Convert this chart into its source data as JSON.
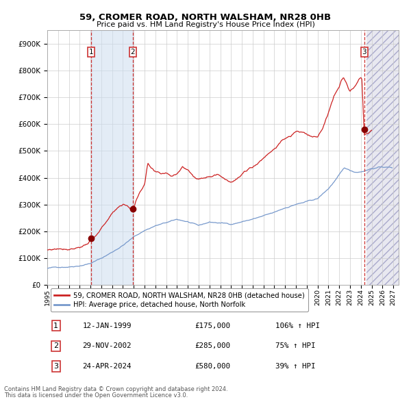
{
  "title": "59, CROMER ROAD, NORTH WALSHAM, NR28 0HB",
  "subtitle": "Price paid vs. HM Land Registry's House Price Index (HPI)",
  "legend_line1": "59, CROMER ROAD, NORTH WALSHAM, NR28 0HB (detached house)",
  "legend_line2": "HPI: Average price, detached house, North Norfolk",
  "footer1": "Contains HM Land Registry data © Crown copyright and database right 2024.",
  "footer2": "This data is licensed under the Open Government Licence v3.0.",
  "transactions": [
    {
      "num": 1,
      "date": "12-JAN-1999",
      "price": 175000,
      "hpi_pct": "106%",
      "date_val": 1999.04
    },
    {
      "num": 2,
      "date": "29-NOV-2002",
      "price": 285000,
      "hpi_pct": "75%",
      "date_val": 2002.91
    },
    {
      "num": 3,
      "date": "24-APR-2024",
      "price": 580000,
      "hpi_pct": "39%",
      "date_val": 2024.32
    }
  ],
  "hpi_color": "#7799cc",
  "price_color": "#cc2222",
  "marker_color": "#880000",
  "vline_color": "#cc3333",
  "shade_color": "#ccddf0",
  "ylim": [
    0,
    950000
  ],
  "xlim_start": 1995.0,
  "xlim_end": 2027.5,
  "yticks": [
    0,
    100000,
    200000,
    300000,
    400000,
    500000,
    600000,
    700000,
    800000,
    900000
  ],
  "ytick_labels": [
    "£0",
    "£100K",
    "£200K",
    "£300K",
    "£400K",
    "£500K",
    "£600K",
    "£700K",
    "£800K",
    "£900K"
  ],
  "xticks": [
    1995,
    1996,
    1997,
    1998,
    1999,
    2000,
    2001,
    2002,
    2003,
    2004,
    2005,
    2006,
    2007,
    2008,
    2009,
    2010,
    2011,
    2012,
    2013,
    2014,
    2015,
    2016,
    2017,
    2018,
    2019,
    2020,
    2021,
    2022,
    2023,
    2024,
    2025,
    2026,
    2027
  ],
  "hpi_anchors": [
    [
      1995.0,
      62000
    ],
    [
      1996.0,
      66000
    ],
    [
      1997.0,
      70000
    ],
    [
      1998.0,
      77000
    ],
    [
      1999.0,
      87000
    ],
    [
      2000.0,
      105000
    ],
    [
      2001.0,
      128000
    ],
    [
      2002.0,
      155000
    ],
    [
      2003.0,
      185000
    ],
    [
      2004.0,
      210000
    ],
    [
      2005.0,
      228000
    ],
    [
      2006.0,
      238000
    ],
    [
      2007.0,
      248000
    ],
    [
      2008.0,
      240000
    ],
    [
      2009.0,
      222000
    ],
    [
      2010.0,
      235000
    ],
    [
      2011.0,
      232000
    ],
    [
      2012.0,
      228000
    ],
    [
      2013.0,
      238000
    ],
    [
      2014.0,
      248000
    ],
    [
      2015.0,
      258000
    ],
    [
      2016.0,
      268000
    ],
    [
      2017.0,
      285000
    ],
    [
      2018.0,
      300000
    ],
    [
      2019.0,
      308000
    ],
    [
      2020.0,
      318000
    ],
    [
      2021.0,
      355000
    ],
    [
      2022.0,
      405000
    ],
    [
      2022.5,
      430000
    ],
    [
      2023.0,
      420000
    ],
    [
      2023.5,
      415000
    ],
    [
      2024.0,
      418000
    ],
    [
      2024.5,
      425000
    ],
    [
      2025.0,
      432000
    ],
    [
      2026.0,
      438000
    ],
    [
      2026.9,
      435000
    ]
  ],
  "price_anchors": [
    [
      1995.0,
      130000
    ],
    [
      1996.0,
      137000
    ],
    [
      1997.0,
      143000
    ],
    [
      1998.0,
      155000
    ],
    [
      1999.04,
      175000
    ],
    [
      1999.5,
      190000
    ],
    [
      2000.0,
      215000
    ],
    [
      2000.5,
      245000
    ],
    [
      2001.0,
      270000
    ],
    [
      2001.5,
      295000
    ],
    [
      2002.0,
      310000
    ],
    [
      2002.5,
      300000
    ],
    [
      2002.91,
      285000
    ],
    [
      2003.0,
      295000
    ],
    [
      2003.3,
      330000
    ],
    [
      2003.6,
      360000
    ],
    [
      2004.0,
      385000
    ],
    [
      2004.3,
      460000
    ],
    [
      2004.6,
      440000
    ],
    [
      2005.0,
      420000
    ],
    [
      2005.5,
      410000
    ],
    [
      2006.0,
      415000
    ],
    [
      2006.5,
      405000
    ],
    [
      2007.0,
      420000
    ],
    [
      2007.5,
      445000
    ],
    [
      2008.0,
      435000
    ],
    [
      2008.5,
      415000
    ],
    [
      2009.0,
      400000
    ],
    [
      2009.5,
      410000
    ],
    [
      2010.0,
      420000
    ],
    [
      2010.5,
      430000
    ],
    [
      2011.0,
      425000
    ],
    [
      2011.5,
      415000
    ],
    [
      2012.0,
      410000
    ],
    [
      2012.5,
      420000
    ],
    [
      2013.0,
      435000
    ],
    [
      2013.5,
      450000
    ],
    [
      2014.0,
      465000
    ],
    [
      2014.5,
      480000
    ],
    [
      2015.0,
      500000
    ],
    [
      2015.5,
      520000
    ],
    [
      2016.0,
      540000
    ],
    [
      2016.5,
      560000
    ],
    [
      2017.0,
      575000
    ],
    [
      2017.5,
      580000
    ],
    [
      2018.0,
      600000
    ],
    [
      2018.5,
      595000
    ],
    [
      2019.0,
      585000
    ],
    [
      2019.5,
      575000
    ],
    [
      2020.0,
      580000
    ],
    [
      2020.5,
      610000
    ],
    [
      2021.0,
      660000
    ],
    [
      2021.3,
      700000
    ],
    [
      2021.6,
      730000
    ],
    [
      2022.0,
      755000
    ],
    [
      2022.2,
      790000
    ],
    [
      2022.4,
      800000
    ],
    [
      2022.6,
      785000
    ],
    [
      2022.8,
      760000
    ],
    [
      2023.0,
      745000
    ],
    [
      2023.2,
      755000
    ],
    [
      2023.5,
      770000
    ],
    [
      2023.8,
      790000
    ],
    [
      2024.0,
      800000
    ],
    [
      2024.1,
      790000
    ],
    [
      2024.32,
      580000
    ],
    [
      2024.5,
      585000
    ],
    [
      2024.8,
      590000
    ],
    [
      2025.0,
      595000
    ]
  ]
}
